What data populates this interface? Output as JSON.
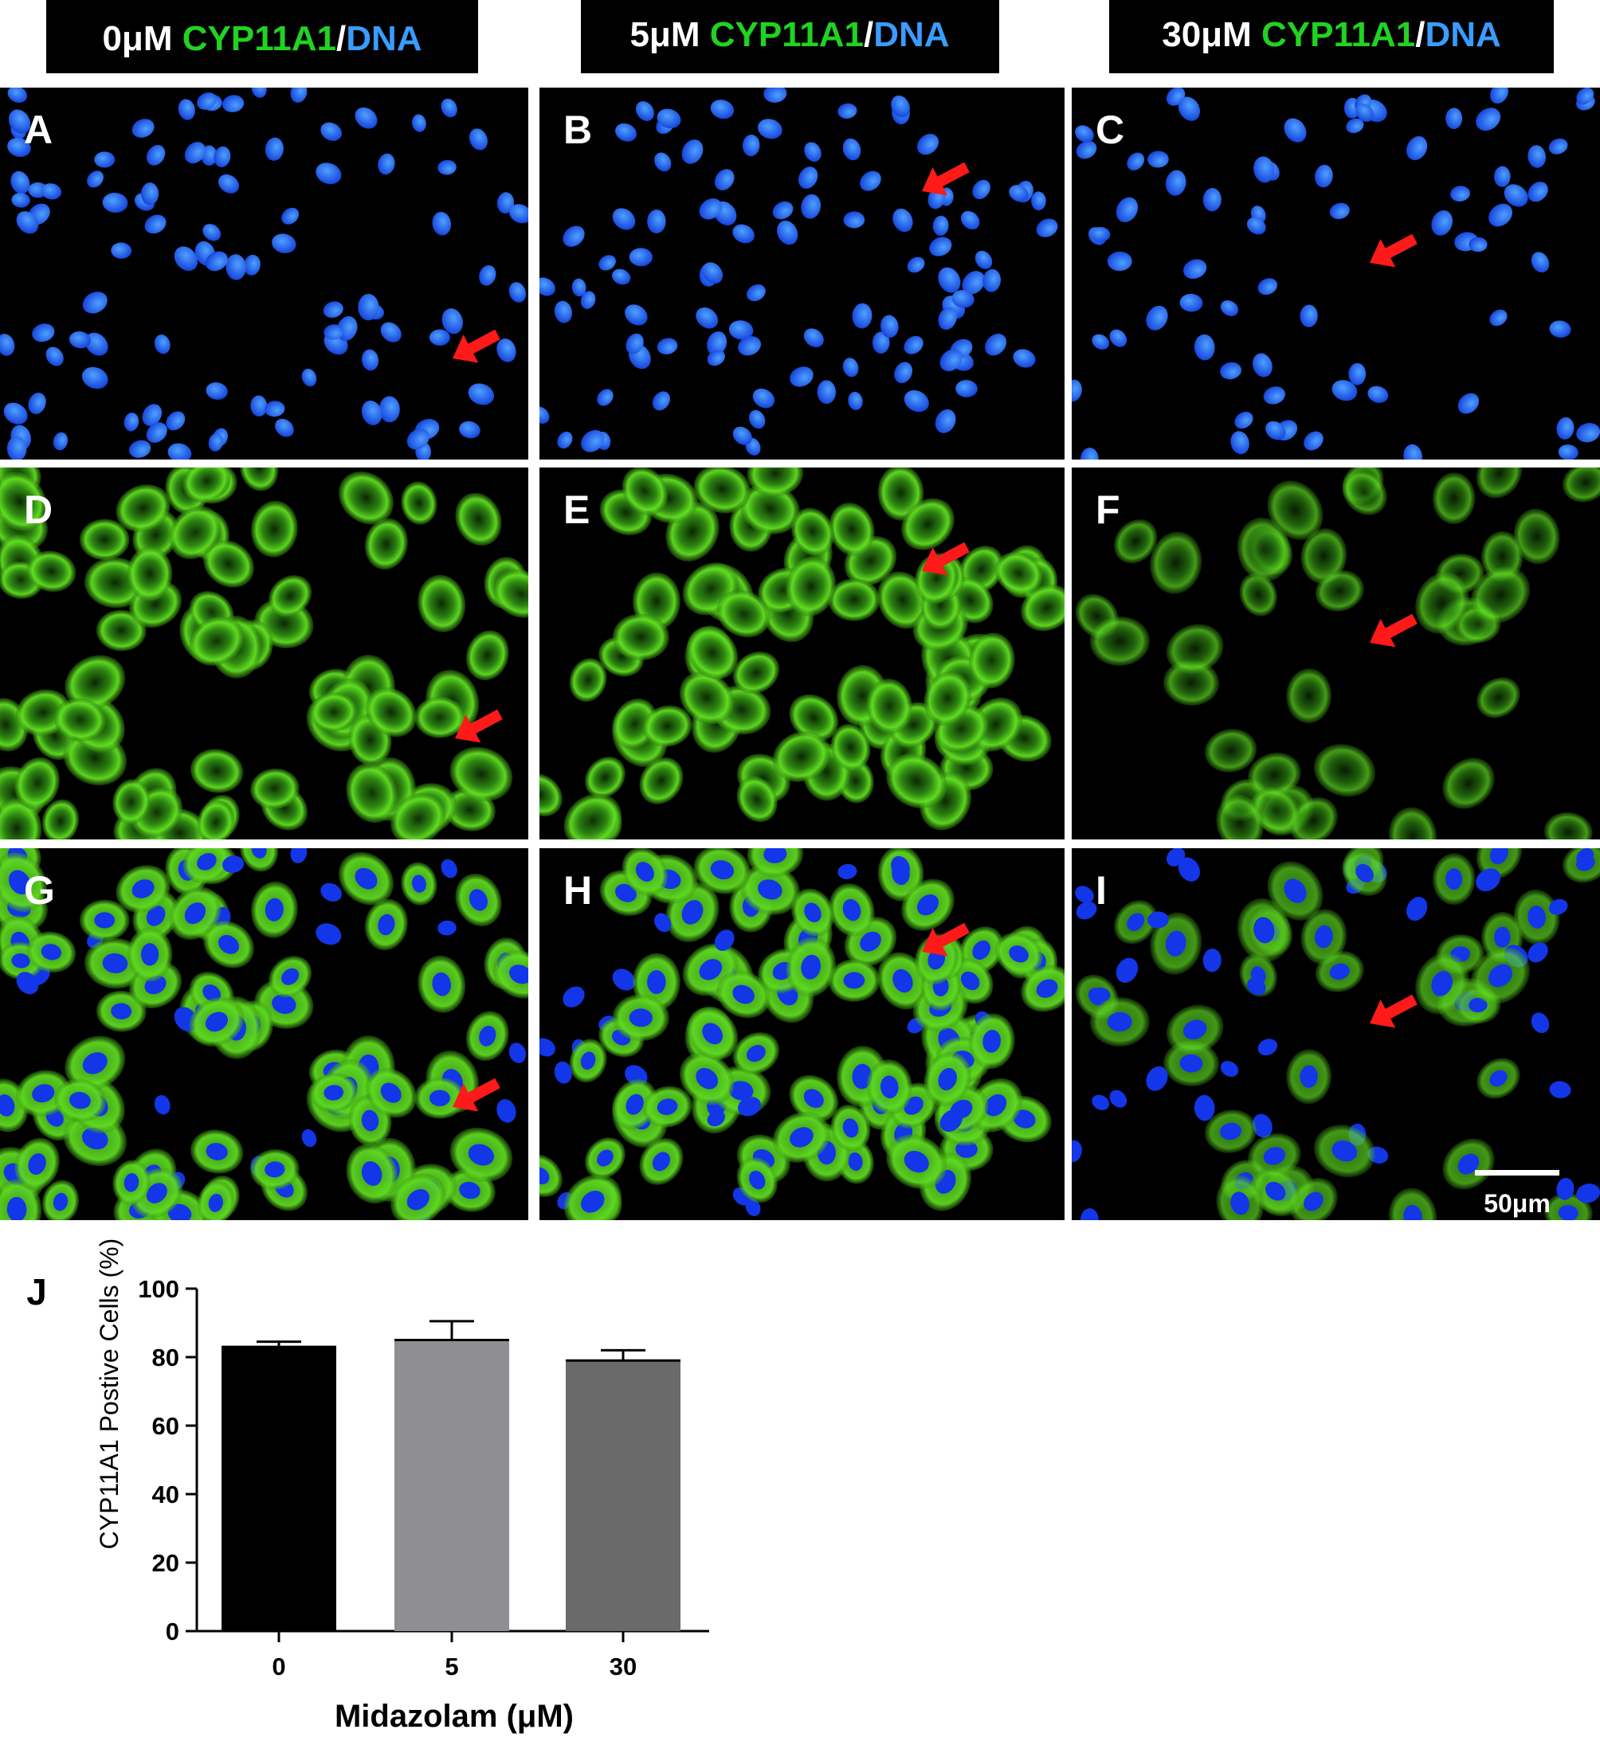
{
  "columns": [
    {
      "conc": "0μM",
      "marker": "CYP11A1",
      "sep": "/",
      "dna": "DNA"
    },
    {
      "conc": "5μM",
      "marker": "CYP11A1",
      "sep": "/",
      "dna": "DNA"
    },
    {
      "conc": "30μM",
      "marker": "CYP11A1",
      "sep": "/",
      "dna": "DNA"
    }
  ],
  "panels": [
    {
      "letter": "A",
      "channel": "dna"
    },
    {
      "letter": "B",
      "channel": "dna"
    },
    {
      "letter": "C",
      "channel": "dna"
    },
    {
      "letter": "D",
      "channel": "cyp"
    },
    {
      "letter": "E",
      "channel": "cyp"
    },
    {
      "letter": "F",
      "channel": "cyp"
    },
    {
      "letter": "G",
      "channel": "merge"
    },
    {
      "letter": "H",
      "channel": "merge"
    },
    {
      "letter": "I",
      "channel": "merge"
    }
  ],
  "scale_bar": {
    "label": "50μm"
  },
  "colors": {
    "dna": "#1a5cff",
    "cyp": "#4fd21c",
    "arrow": "#ff1a1a",
    "label_green": "#21d321",
    "label_blue": "#3a9cff",
    "bar_0": "#000000",
    "bar_5": "#8e8e93",
    "bar_30": "#6a6a6a"
  },
  "chart_data": {
    "type": "bar",
    "panel_label": "J",
    "categories": [
      "0",
      "5",
      "30"
    ],
    "values": [
      83,
      85,
      79
    ],
    "errors": [
      1.5,
      5.5,
      3
    ],
    "xlabel": "Midazolam (μM)",
    "ylabel": "CYP11A1 Postive Cells (%)",
    "ylim": [
      0,
      100
    ],
    "yticks": [
      "0",
      "20",
      "40",
      "60",
      "80",
      "100"
    ],
    "grid": false
  }
}
